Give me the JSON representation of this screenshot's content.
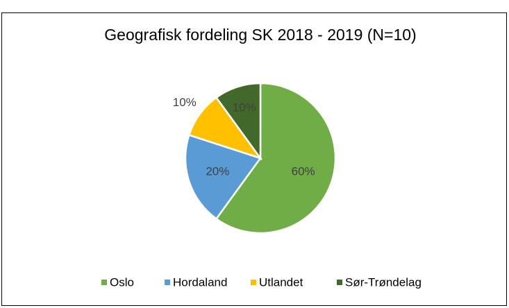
{
  "chart_data": {
    "type": "pie",
    "title": "Geografisk fordeling SK 2018 - 2019 (N=10)",
    "categories": [
      "Oslo",
      "Hordaland",
      "Utlandet",
      "Sør-Trøndelag"
    ],
    "values": [
      60,
      20,
      10,
      10
    ],
    "value_labels": [
      "60%",
      "20%",
      "10%",
      "10%"
    ],
    "colors": [
      "#70ad47",
      "#5b9bd5",
      "#ffc000",
      "#43682b"
    ],
    "legend": "bottom"
  }
}
